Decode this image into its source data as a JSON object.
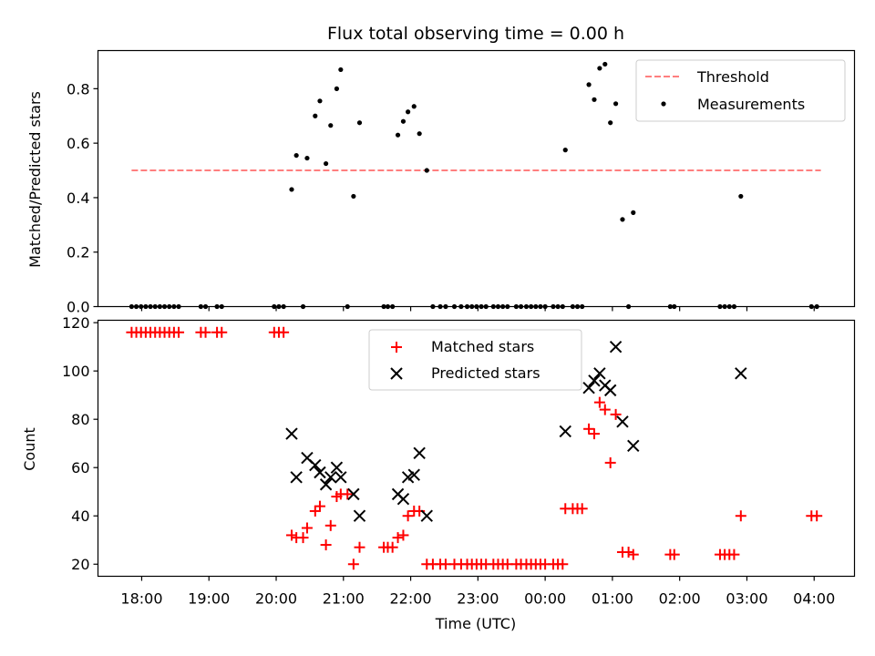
{
  "chart_data": {
    "title": "Flux total observing time = 0.00 h",
    "xlabel": "Time (UTC)",
    "x_tick_labels": [
      "18:00",
      "19:00",
      "20:00",
      "21:00",
      "22:00",
      "23:00",
      "00:00",
      "01:00",
      "02:00",
      "03:00",
      "04:00"
    ],
    "x_ticks_hours": [
      18,
      19,
      20,
      21,
      22,
      23,
      24,
      25,
      26,
      27,
      28
    ],
    "xlim": [
      17.35,
      28.6
    ],
    "colors": {
      "threshold": "#ff7f7f",
      "measurements": "#000000",
      "matched": "#ff0000",
      "predicted": "#000000"
    },
    "panels": [
      {
        "type": "scatter",
        "ylabel": "Matched/Predicted stars",
        "ylim": [
          0,
          0.94
        ],
        "y_ticks": [
          0.0,
          0.2,
          0.4,
          0.6,
          0.8
        ],
        "y_tick_labels": [
          "0.0",
          "0.2",
          "0.4",
          "0.6",
          "0.8"
        ],
        "legend": [
          "Threshold",
          "Measurements"
        ],
        "legend_loc": "upper right",
        "threshold": {
          "value": 0.5,
          "x_range": [
            17.85,
            28.1
          ]
        },
        "series": [
          {
            "name": "Measurements",
            "marker": "dot",
            "points": [
              [
                17.85,
                0
              ],
              [
                17.92,
                0
              ],
              [
                17.99,
                0
              ],
              [
                18.06,
                0
              ],
              [
                18.13,
                0
              ],
              [
                18.2,
                0
              ],
              [
                18.27,
                0
              ],
              [
                18.34,
                0
              ],
              [
                18.41,
                0
              ],
              [
                18.48,
                0
              ],
              [
                18.55,
                0
              ],
              [
                18.88,
                0
              ],
              [
                18.95,
                0
              ],
              [
                19.12,
                0
              ],
              [
                19.19,
                0
              ],
              [
                19.97,
                0
              ],
              [
                20.04,
                0
              ],
              [
                20.11,
                0
              ],
              [
                20.23,
                0.43
              ],
              [
                20.3,
                0.555
              ],
              [
                20.4,
                0
              ],
              [
                20.46,
                0.545
              ],
              [
                20.58,
                0.7
              ],
              [
                20.65,
                0.755
              ],
              [
                20.74,
                0.525
              ],
              [
                20.81,
                0.665
              ],
              [
                20.9,
                0.8
              ],
              [
                20.96,
                0.87
              ],
              [
                21.06,
                0
              ],
              [
                21.15,
                0.405
              ],
              [
                21.24,
                0.675
              ],
              [
                21.6,
                0
              ],
              [
                21.66,
                0
              ],
              [
                21.73,
                0
              ],
              [
                21.81,
                0.63
              ],
              [
                21.89,
                0.68
              ],
              [
                21.96,
                0.715
              ],
              [
                22.05,
                0.735
              ],
              [
                22.13,
                0.635
              ],
              [
                22.24,
                0.5
              ],
              [
                22.33,
                0
              ],
              [
                22.44,
                0
              ],
              [
                22.52,
                0
              ],
              [
                22.65,
                0
              ],
              [
                22.75,
                0
              ],
              [
                22.84,
                0
              ],
              [
                22.91,
                0
              ],
              [
                22.98,
                0
              ],
              [
                23.05,
                0
              ],
              [
                23.12,
                0
              ],
              [
                23.23,
                0
              ],
              [
                23.3,
                0
              ],
              [
                23.37,
                0
              ],
              [
                23.44,
                0
              ],
              [
                23.57,
                0
              ],
              [
                23.64,
                0
              ],
              [
                23.72,
                0
              ],
              [
                23.79,
                0
              ],
              [
                23.86,
                0
              ],
              [
                23.93,
                0
              ],
              [
                24.0,
                0
              ],
              [
                24.12,
                0
              ],
              [
                24.19,
                0
              ],
              [
                24.26,
                0
              ],
              [
                24.3,
                0.575
              ],
              [
                24.41,
                0
              ],
              [
                24.48,
                0
              ],
              [
                24.55,
                0
              ],
              [
                24.65,
                0.815
              ],
              [
                24.73,
                0.76
              ],
              [
                24.81,
                0.875
              ],
              [
                24.89,
                0.89
              ],
              [
                24.97,
                0.675
              ],
              [
                25.05,
                0.745
              ],
              [
                25.15,
                0.32
              ],
              [
                25.24,
                0
              ],
              [
                25.31,
                0.345
              ],
              [
                25.86,
                0
              ],
              [
                25.92,
                0
              ],
              [
                26.6,
                0
              ],
              [
                26.67,
                0
              ],
              [
                26.74,
                0
              ],
              [
                26.81,
                0
              ],
              [
                26.91,
                0.405
              ],
              [
                27.96,
                0
              ],
              [
                28.04,
                0
              ]
            ]
          }
        ]
      },
      {
        "type": "scatter",
        "ylabel": "Count",
        "ylim": [
          15,
          121
        ],
        "y_ticks": [
          20,
          40,
          60,
          80,
          100,
          120
        ],
        "y_tick_labels": [
          "20",
          "40",
          "60",
          "80",
          "100",
          "120"
        ],
        "legend": [
          "Matched stars",
          "Predicted stars"
        ],
        "legend_loc": "upper center",
        "series": [
          {
            "name": "Matched stars",
            "marker": "plus",
            "points": [
              [
                17.85,
                116
              ],
              [
                17.92,
                116
              ],
              [
                17.99,
                116
              ],
              [
                18.06,
                116
              ],
              [
                18.13,
                116
              ],
              [
                18.2,
                116
              ],
              [
                18.27,
                116
              ],
              [
                18.34,
                116
              ],
              [
                18.41,
                116
              ],
              [
                18.48,
                116
              ],
              [
                18.55,
                116
              ],
              [
                18.88,
                116
              ],
              [
                18.95,
                116
              ],
              [
                19.12,
                116
              ],
              [
                19.19,
                116
              ],
              [
                19.97,
                116
              ],
              [
                20.04,
                116
              ],
              [
                20.11,
                116
              ],
              [
                20.23,
                32
              ],
              [
                20.3,
                31
              ],
              [
                20.4,
                31
              ],
              [
                20.46,
                35
              ],
              [
                20.58,
                42
              ],
              [
                20.65,
                44
              ],
              [
                20.74,
                28
              ],
              [
                20.81,
                36
              ],
              [
                20.9,
                48
              ],
              [
                20.96,
                49
              ],
              [
                21.06,
                49
              ],
              [
                21.15,
                20
              ],
              [
                21.24,
                27
              ],
              [
                21.6,
                27
              ],
              [
                21.66,
                27
              ],
              [
                21.73,
                27
              ],
              [
                21.81,
                31
              ],
              [
                21.89,
                32
              ],
              [
                21.96,
                40
              ],
              [
                22.05,
                42
              ],
              [
                22.13,
                42
              ],
              [
                22.24,
                20
              ],
              [
                22.33,
                20
              ],
              [
                22.44,
                20
              ],
              [
                22.52,
                20
              ],
              [
                22.65,
                20
              ],
              [
                22.75,
                20
              ],
              [
                22.84,
                20
              ],
              [
                22.91,
                20
              ],
              [
                22.98,
                20
              ],
              [
                23.05,
                20
              ],
              [
                23.12,
                20
              ],
              [
                23.23,
                20
              ],
              [
                23.3,
                20
              ],
              [
                23.37,
                20
              ],
              [
                23.44,
                20
              ],
              [
                23.57,
                20
              ],
              [
                23.64,
                20
              ],
              [
                23.72,
                20
              ],
              [
                23.79,
                20
              ],
              [
                23.86,
                20
              ],
              [
                23.93,
                20
              ],
              [
                24.0,
                20
              ],
              [
                24.12,
                20
              ],
              [
                24.19,
                20
              ],
              [
                24.26,
                20
              ],
              [
                24.3,
                43
              ],
              [
                24.41,
                43
              ],
              [
                24.48,
                43
              ],
              [
                24.55,
                43
              ],
              [
                24.65,
                76
              ],
              [
                24.73,
                74
              ],
              [
                24.81,
                87
              ],
              [
                24.89,
                84
              ],
              [
                24.97,
                62
              ],
              [
                25.05,
                82
              ],
              [
                25.15,
                25
              ],
              [
                25.24,
                25
              ],
              [
                25.31,
                24
              ],
              [
                25.86,
                24
              ],
              [
                25.92,
                24
              ],
              [
                26.6,
                24
              ],
              [
                26.67,
                24
              ],
              [
                26.74,
                24
              ],
              [
                26.81,
                24
              ],
              [
                26.91,
                40
              ],
              [
                27.96,
                40
              ],
              [
                28.04,
                40
              ]
            ]
          },
          {
            "name": "Predicted stars",
            "marker": "x",
            "points": [
              [
                20.23,
                74
              ],
              [
                20.3,
                56
              ],
              [
                20.46,
                64
              ],
              [
                20.58,
                61
              ],
              [
                20.65,
                58
              ],
              [
                20.74,
                53
              ],
              [
                20.81,
                56
              ],
              [
                20.9,
                60
              ],
              [
                20.96,
                56
              ],
              [
                21.15,
                49
              ],
              [
                21.24,
                40
              ],
              [
                21.81,
                49
              ],
              [
                21.89,
                47
              ],
              [
                21.96,
                56
              ],
              [
                22.05,
                57
              ],
              [
                22.13,
                66
              ],
              [
                22.24,
                40
              ],
              [
                24.3,
                75
              ],
              [
                24.65,
                93
              ],
              [
                24.73,
                96
              ],
              [
                24.81,
                99
              ],
              [
                24.89,
                94
              ],
              [
                24.97,
                92
              ],
              [
                25.05,
                110
              ],
              [
                25.15,
                79
              ],
              [
                25.31,
                69
              ],
              [
                26.91,
                99
              ]
            ]
          }
        ]
      }
    ]
  }
}
